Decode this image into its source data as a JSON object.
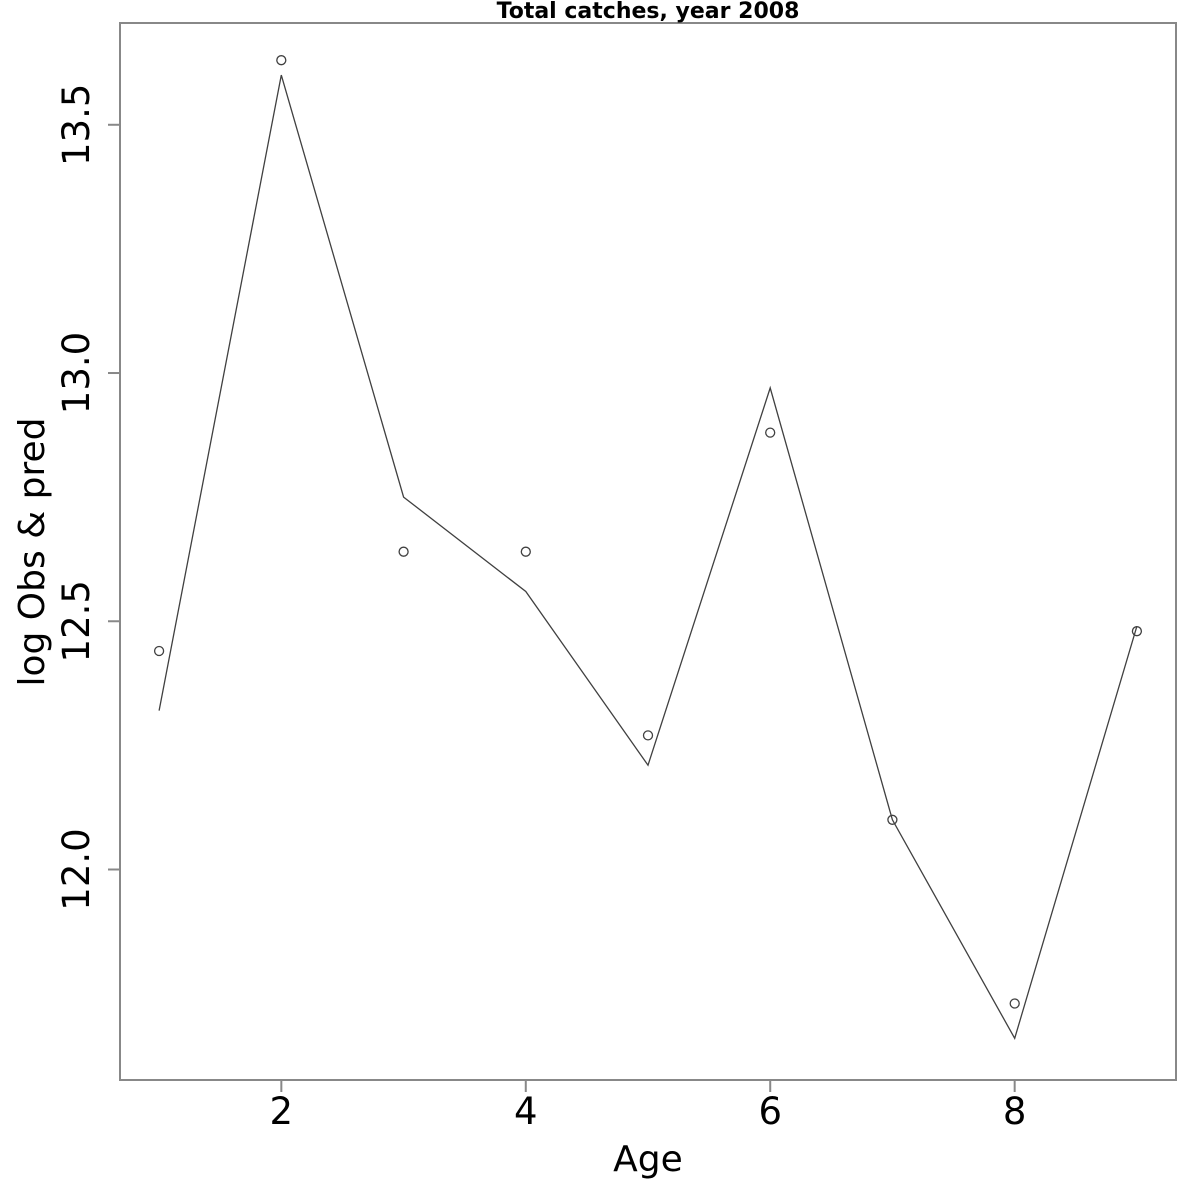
{
  "figure": {
    "background": "#ffffff"
  },
  "chart_data": {
    "type": "line",
    "title": "Total catches, year 2008",
    "xlabel": "Age",
    "ylabel": "log Obs & pred",
    "x": [
      1,
      2,
      3,
      4,
      5,
      6,
      7,
      8,
      9
    ],
    "series": [
      {
        "name": "observed",
        "style": "open-circle-points",
        "values": [
          12.44,
          13.63,
          12.64,
          12.64,
          12.27,
          12.88,
          12.1,
          11.73,
          12.48
        ]
      },
      {
        "name": "predicted",
        "style": "solid-line",
        "values": [
          12.32,
          13.6,
          12.75,
          12.56,
          12.21,
          12.97,
          12.1,
          11.66,
          12.49
        ]
      }
    ],
    "xlim": [
      0.68,
      9.32
    ],
    "ylim": [
      11.576,
      13.705
    ],
    "x_ticks": [
      2,
      4,
      6,
      8
    ],
    "x_tick_labels": [
      "2",
      "4",
      "6",
      "8"
    ],
    "y_ticks": [
      12.0,
      12.5,
      13.0,
      13.5
    ],
    "y_tick_labels": [
      "12.0",
      "12.5",
      "13.0",
      "13.5"
    ],
    "grid": false,
    "legend": "none",
    "colors": {
      "line": "#404040",
      "point_stroke": "#404040",
      "box": "#888888",
      "tick": "#888888",
      "text": "#000000"
    }
  }
}
